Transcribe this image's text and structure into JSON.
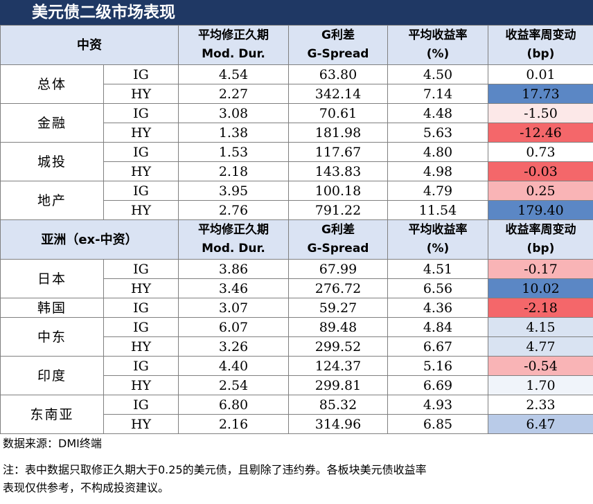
{
  "title": "美元债二级市场表现",
  "columns": {
    "duration": [
      "平均修正久期",
      "Mod. Dur."
    ],
    "spread": [
      "G利差",
      "G-Spread"
    ],
    "yield": [
      "平均收益率",
      "(%)"
    ],
    "change": [
      "收益率周变动",
      "(bp)"
    ]
  },
  "sections": [
    {
      "title": "中资",
      "groups": [
        {
          "name": "总体",
          "rows": [
            {
              "grade": "IG",
              "dur": "4.54",
              "spread": "63.80",
              "yield": "4.50",
              "change": "0.01",
              "color": "#ffffff"
            },
            {
              "grade": "HY",
              "dur": "2.27",
              "spread": "342.14",
              "yield": "7.14",
              "change": "17.73",
              "color": "#5b87c5"
            }
          ]
        },
        {
          "name": "金融",
          "rows": [
            {
              "grade": "IG",
              "dur": "3.08",
              "spread": "70.61",
              "yield": "4.48",
              "change": "-1.50",
              "color": "#fce8e8"
            },
            {
              "grade": "HY",
              "dur": "1.38",
              "spread": "181.98",
              "yield": "5.63",
              "change": "-12.46",
              "color": "#f4676a"
            }
          ]
        },
        {
          "name": "城投",
          "rows": [
            {
              "grade": "IG",
              "dur": "1.53",
              "spread": "117.67",
              "yield": "4.80",
              "change": "0.73",
              "color": "#ffffff"
            },
            {
              "grade": "HY",
              "dur": "2.18",
              "spread": "143.83",
              "yield": "4.98",
              "change": "-0.03",
              "color": "#f4676a"
            }
          ]
        },
        {
          "name": "地产",
          "rows": [
            {
              "grade": "IG",
              "dur": "3.95",
              "spread": "100.18",
              "yield": "4.79",
              "change": "0.25",
              "color": "#f9b4b6"
            },
            {
              "grade": "HY",
              "dur": "2.76",
              "spread": "791.22",
              "yield": "11.54",
              "change": "179.40",
              "color": "#5b87c5"
            }
          ]
        }
      ]
    },
    {
      "title": "亚洲（ex-中资）",
      "groups": [
        {
          "name": "日本",
          "rows": [
            {
              "grade": "IG",
              "dur": "3.86",
              "spread": "67.99",
              "yield": "4.51",
              "change": "-0.17",
              "color": "#f9b4b6"
            },
            {
              "grade": "HY",
              "dur": "3.46",
              "spread": "276.72",
              "yield": "6.56",
              "change": "10.02",
              "color": "#5b87c5"
            }
          ]
        },
        {
          "name": "韩国",
          "rows": [
            {
              "grade": "IG",
              "dur": "3.07",
              "spread": "59.27",
              "yield": "4.36",
              "change": "-2.18",
              "color": "#f4676a"
            }
          ]
        },
        {
          "name": "中东",
          "rows": [
            {
              "grade": "IG",
              "dur": "6.07",
              "spread": "89.48",
              "yield": "4.84",
              "change": "4.15",
              "color": "#d9e3f2"
            },
            {
              "grade": "HY",
              "dur": "3.26",
              "spread": "299.52",
              "yield": "6.67",
              "change": "4.77",
              "color": "#d9e3f2"
            }
          ]
        },
        {
          "name": "印度",
          "rows": [
            {
              "grade": "IG",
              "dur": "4.40",
              "spread": "124.37",
              "yield": "5.16",
              "change": "-0.54",
              "color": "#f9b4b6"
            },
            {
              "grade": "HY",
              "dur": "2.54",
              "spread": "299.81",
              "yield": "6.69",
              "change": "1.70",
              "color": "#f0f4fa"
            }
          ]
        },
        {
          "name": "东南亚",
          "rows": [
            {
              "grade": "IG",
              "dur": "6.80",
              "spread": "85.32",
              "yield": "4.93",
              "change": "2.33",
              "color": "#ffffff"
            },
            {
              "grade": "HY",
              "dur": "2.16",
              "spread": "314.96",
              "yield": "6.85",
              "change": "6.47",
              "color": "#b9cbe8"
            }
          ]
        }
      ]
    }
  ],
  "source": "数据来源：DMI终端",
  "note_line1": "注：表中数据只取修正久期大于0.25的美元债，且剔除了违约券。各板块美元债收益率",
  "note_line2": "表现仅供参考，不构成投资建议。"
}
